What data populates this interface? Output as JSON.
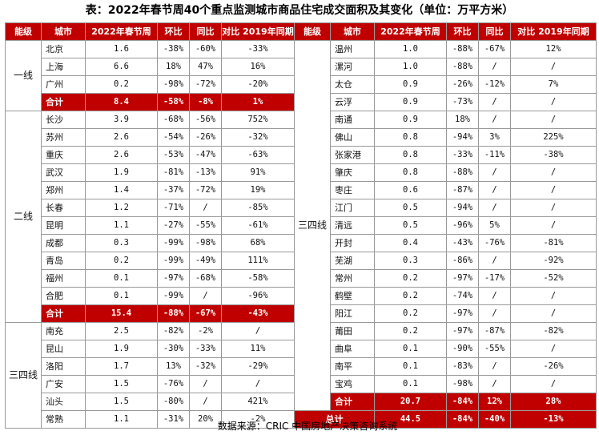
{
  "title": "表：2022年春节周40个重点监测城市商品住宅成交面积及其变化（单位：万平方米）",
  "headers": [
    "能级",
    "城市",
    "2022年春节周",
    "环比",
    "同比",
    "对比 2019年同期"
  ],
  "source": "数据来源：CRIC 中国房地产决策咨询系统",
  "left": {
    "tier1": {
      "label": "一线",
      "rows": [
        [
          "北京",
          "1.6",
          "-38%",
          "-60%",
          "-33%"
        ],
        [
          "上海",
          "6.6",
          "18%",
          "47%",
          "16%"
        ],
        [
          "广州",
          "0.2",
          "-98%",
          "-72%",
          "-20%"
        ]
      ],
      "subtotal": [
        "合计",
        "8.4",
        "-58%",
        "-8%",
        "1%"
      ]
    },
    "tier2": {
      "label": "二线",
      "rows": [
        [
          "长沙",
          "3.9",
          "-68%",
          "-56%",
          "752%"
        ],
        [
          "苏州",
          "2.6",
          "-54%",
          "-26%",
          "-32%"
        ],
        [
          "重庆",
          "2.6",
          "-53%",
          "-47%",
          "-63%"
        ],
        [
          "武汉",
          "1.9",
          "-81%",
          "-13%",
          "91%"
        ],
        [
          "郑州",
          "1.4",
          "-37%",
          "-72%",
          "19%"
        ],
        [
          "长春",
          "1.2",
          "-71%",
          "/",
          "-85%"
        ],
        [
          "昆明",
          "1.1",
          "-27%",
          "-55%",
          "-61%"
        ],
        [
          "成都",
          "0.3",
          "-99%",
          "-98%",
          "68%"
        ],
        [
          "青岛",
          "0.2",
          "-99%",
          "-49%",
          "111%"
        ],
        [
          "福州",
          "0.1",
          "-97%",
          "-68%",
          "-58%"
        ],
        [
          "合肥",
          "0.1",
          "-99%",
          "/",
          "-96%"
        ]
      ],
      "subtotal": [
        "合计",
        "15.4",
        "-88%",
        "-67%",
        "-43%"
      ]
    },
    "tier3": {
      "label": "三四线",
      "rows": [
        [
          "南充",
          "2.5",
          "-82%",
          "-2%",
          "/"
        ],
        [
          "昆山",
          "1.9",
          "-30%",
          "-33%",
          "11%"
        ],
        [
          "洛阳",
          "1.7",
          "13%",
          "-32%",
          "-29%"
        ],
        [
          "广安",
          "1.5",
          "-76%",
          "/",
          "/"
        ],
        [
          "汕头",
          "1.5",
          "-80%",
          "/",
          "421%"
        ],
        [
          "常熟",
          "1.1",
          "-31%",
          "20%",
          "-2%"
        ]
      ]
    }
  },
  "right": {
    "label": "三四线",
    "rows": [
      [
        "温州",
        "1.0",
        "-88%",
        "-67%",
        "12%"
      ],
      [
        "漯河",
        "1.0",
        "-88%",
        "/",
        "/"
      ],
      [
        "太仓",
        "0.9",
        "-26%",
        "-12%",
        "7%"
      ],
      [
        "云浮",
        "0.9",
        "-73%",
        "/",
        "/"
      ],
      [
        "南通",
        "0.9",
        "18%",
        "/",
        "/"
      ],
      [
        "佛山",
        "0.8",
        "-94%",
        "3%",
        "225%"
      ],
      [
        "张家港",
        "0.8",
        "-33%",
        "-11%",
        "-38%"
      ],
      [
        "肇庆",
        "0.8",
        "-88%",
        "/",
        "/"
      ],
      [
        "枣庄",
        "0.6",
        "-87%",
        "/",
        "/"
      ],
      [
        "江门",
        "0.5",
        "-94%",
        "/",
        "/"
      ],
      [
        "清远",
        "0.5",
        "-96%",
        "5%",
        "/"
      ],
      [
        "开封",
        "0.4",
        "-43%",
        "-76%",
        "-81%"
      ],
      [
        "芜湖",
        "0.3",
        "-86%",
        "/",
        "-92%"
      ],
      [
        "常州",
        "0.2",
        "-97%",
        "-17%",
        "-52%"
      ],
      [
        "鹤壁",
        "0.2",
        "-74%",
        "/",
        "/"
      ],
      [
        "阳江",
        "0.2",
        "-97%",
        "/",
        "/"
      ],
      [
        "莆田",
        "0.2",
        "-97%",
        "-87%",
        "-82%"
      ],
      [
        "曲阜",
        "0.1",
        "-90%",
        "-55%",
        "/"
      ],
      [
        "南平",
        "0.1",
        "-83%",
        "/",
        "-26%"
      ],
      [
        "宝鸡",
        "0.1",
        "-98%",
        "/",
        "/"
      ]
    ],
    "subtotal": [
      "合计",
      "20.7",
      "-84%",
      "12%",
      "28%"
    ],
    "total": [
      "总计",
      "44.5",
      "-84%",
      "-40%",
      "-13%"
    ]
  }
}
